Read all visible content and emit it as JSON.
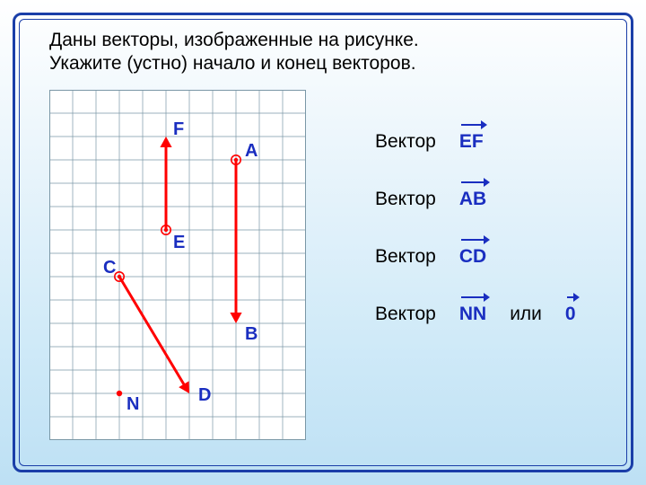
{
  "slide": {
    "background_gradient": [
      "#ffffff",
      "#e8f4fb",
      "#d0eaf8",
      "#bde0f4"
    ],
    "frame_color": "#1a3ea8"
  },
  "problem": {
    "text": "Даны векторы, изображенные на рисунке.\nУкажите (устно) начало и конец векторов."
  },
  "grid": {
    "cols": 11,
    "rows": 15,
    "cell": 26,
    "line_color": "#7a97a6",
    "background": "#ffffff"
  },
  "diagram": {
    "vector_color": "#ff0000",
    "vector_stroke": 3,
    "label_color": "#1a2ec0",
    "label_fontsize": 20,
    "arrowhead_size": 12,
    "point_radius": 3.2,
    "points": {
      "A": {
        "gx": 8,
        "gy": 3,
        "label_dx": 10,
        "label_dy": -4,
        "mark": "circle"
      },
      "B": {
        "gx": 8,
        "gy": 10,
        "label_dx": 10,
        "label_dy": 18,
        "mark": "arrow-down"
      },
      "C": {
        "gx": 3,
        "gy": 8,
        "label_dx": -18,
        "label_dy": -4,
        "mark": "circle"
      },
      "D": {
        "gx": 6,
        "gy": 13,
        "label_dx": 10,
        "label_dy": 8,
        "mark": "arrow-se"
      },
      "E": {
        "gx": 5,
        "gy": 6,
        "label_dx": 8,
        "label_dy": 20,
        "mark": "circle"
      },
      "F": {
        "gx": 5,
        "gy": 2,
        "label_dx": 8,
        "label_dy": -2,
        "mark": "arrow-up"
      },
      "N": {
        "gx": 3,
        "gy": 13,
        "label_dx": 8,
        "label_dy": 18,
        "mark": "dot"
      }
    },
    "vectors": [
      {
        "from": "E",
        "to": "F"
      },
      {
        "from": "A",
        "to": "B"
      },
      {
        "from": "C",
        "to": "D"
      }
    ]
  },
  "list": {
    "word": "Вектор",
    "or": "или",
    "items": [
      {
        "label": "EF"
      },
      {
        "label": "AB"
      },
      {
        "label": "CD"
      },
      {
        "label": "NN",
        "extra": "0"
      }
    ],
    "label_color": "#1a2ec0",
    "fontsize": 21
  }
}
